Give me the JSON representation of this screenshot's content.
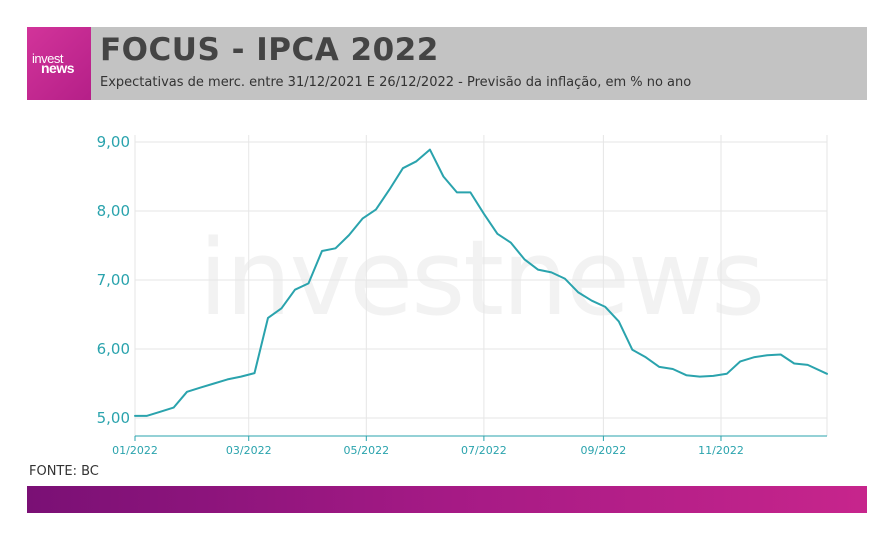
{
  "header": {
    "title": "FOCUS - IPCA 2022",
    "subtitle": "Expectativas de merc. entre 31/12/2021 E 26/12/2022 - Previsão da inflação, em % no ano",
    "logo_top": "invest",
    "logo_bottom": "news"
  },
  "watermark": "investnews",
  "source": "FONTE: BC",
  "colors": {
    "line": "#2aa3ad",
    "axis_text": "#2aa3ad",
    "grid": "#e6e6e6",
    "header_bg": "#c3c3c3",
    "brand_pink": "#c7258c",
    "brand_purple": "#7a1075"
  },
  "chart_data": {
    "type": "line",
    "x_tick_labels": [
      "01/2022",
      "03/2022",
      "05/2022",
      "07/2022",
      "09/2022",
      "11/2022"
    ],
    "y_tick_labels": [
      "5,00",
      "6,00",
      "7,00",
      "8,00",
      "9,00"
    ],
    "ylim": [
      4.8,
      9.1
    ],
    "grid": true,
    "series": [
      {
        "x": [
          "2021-12-31",
          "2022-01-07",
          "2022-01-14",
          "2022-01-21",
          "2022-01-28",
          "2022-02-04",
          "2022-02-11",
          "2022-02-18",
          "2022-02-25",
          "2022-03-04",
          "2022-03-11",
          "2022-03-18",
          "2022-03-25",
          "2022-04-01",
          "2022-04-08",
          "2022-04-15",
          "2022-04-22",
          "2022-04-29",
          "2022-05-06",
          "2022-05-13",
          "2022-05-20",
          "2022-05-27",
          "2022-06-03",
          "2022-06-10",
          "2022-06-17",
          "2022-06-24",
          "2022-07-01",
          "2022-07-08",
          "2022-07-15",
          "2022-07-22",
          "2022-07-29",
          "2022-08-05",
          "2022-08-12",
          "2022-08-19",
          "2022-08-26",
          "2022-09-02",
          "2022-09-09",
          "2022-09-16",
          "2022-09-23",
          "2022-09-30",
          "2022-10-07",
          "2022-10-14",
          "2022-10-21",
          "2022-10-28",
          "2022-11-04",
          "2022-11-11",
          "2022-11-18",
          "2022-11-25",
          "2022-12-02",
          "2022-12-09",
          "2022-12-16",
          "2022-12-26"
        ],
        "values": [
          5.03,
          5.03,
          5.09,
          5.15,
          5.38,
          5.44,
          5.5,
          5.56,
          5.6,
          5.65,
          6.45,
          6.59,
          6.86,
          6.95,
          7.42,
          7.46,
          7.65,
          7.89,
          8.02,
          8.31,
          8.62,
          8.72,
          8.89,
          8.5,
          8.27,
          8.27,
          7.96,
          7.67,
          7.54,
          7.3,
          7.15,
          7.11,
          7.02,
          6.82,
          6.7,
          6.61,
          6.4,
          5.99,
          5.88,
          5.74,
          5.71,
          5.62,
          5.6,
          5.61,
          5.64,
          5.82,
          5.88,
          5.91,
          5.92,
          5.79,
          5.77,
          5.64
        ]
      }
    ]
  }
}
